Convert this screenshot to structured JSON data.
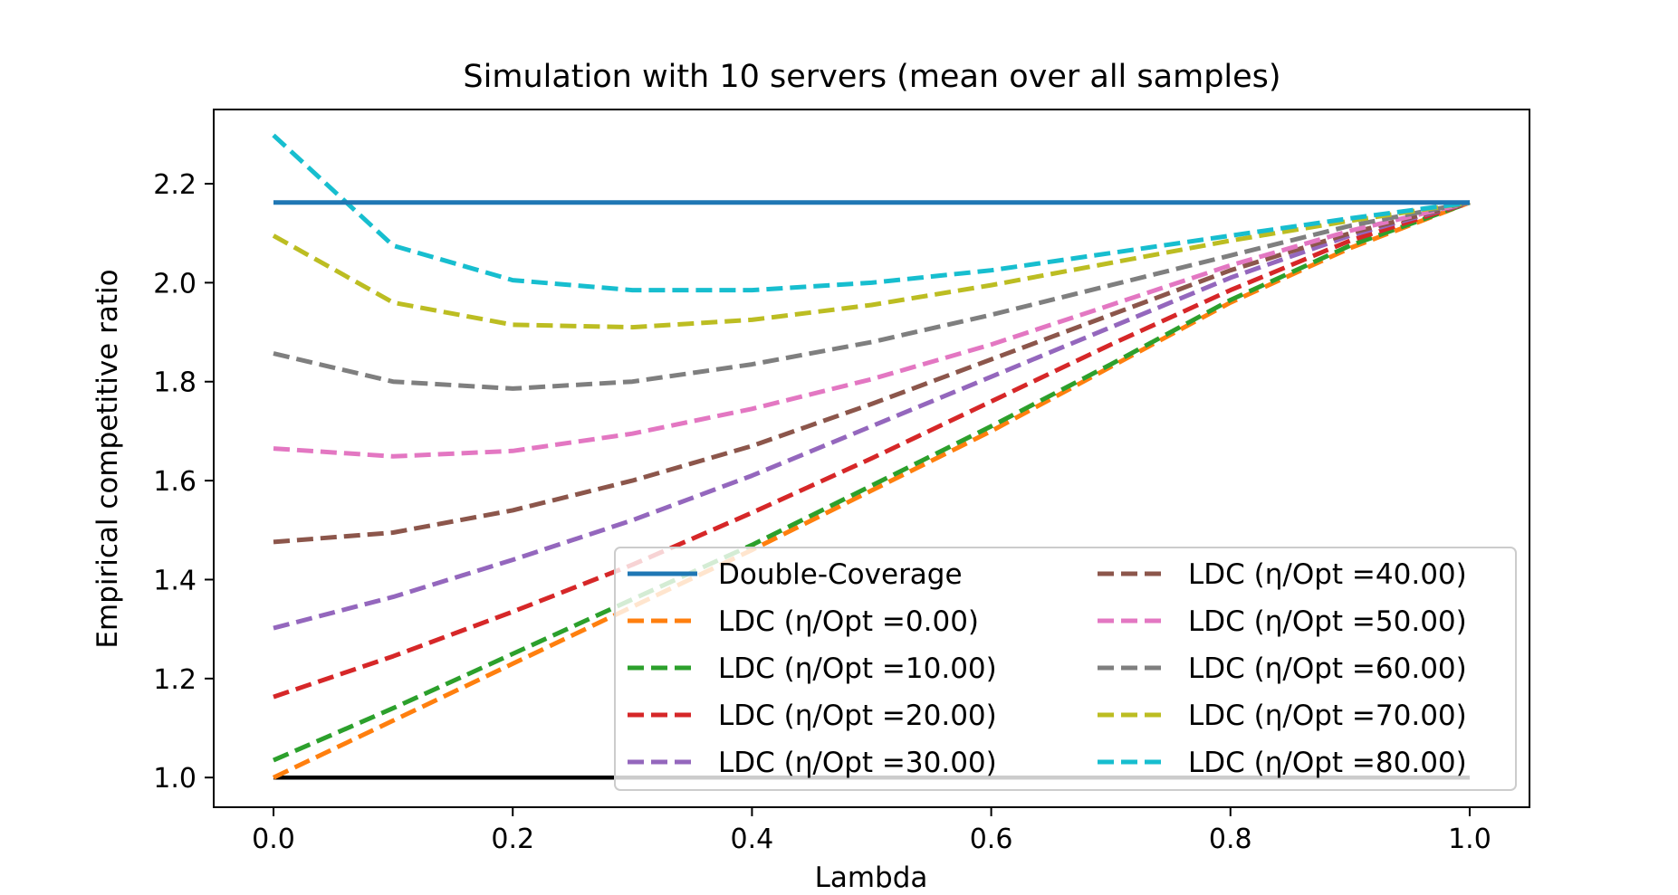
{
  "chart_data": {
    "type": "line",
    "title": "Simulation with 10 servers (mean over all samples)",
    "xlabel": "Lambda",
    "ylabel": "Empirical competitive ratio",
    "xlim": [
      -0.05,
      1.05
    ],
    "ylim": [
      0.94,
      2.35
    ],
    "xticks": [
      0.0,
      0.2,
      0.4,
      0.6,
      0.8,
      1.0
    ],
    "xtick_labels": [
      "0.0",
      "0.2",
      "0.4",
      "0.6",
      "0.8",
      "1.0"
    ],
    "yticks": [
      1.0,
      1.2,
      1.4,
      1.6,
      1.8,
      2.0,
      2.2
    ],
    "ytick_labels": [
      "1.0",
      "1.2",
      "1.4",
      "1.6",
      "1.8",
      "2.0",
      "2.2"
    ],
    "grid": false,
    "legend_placement": "lower-right",
    "legend_columns": 2,
    "x": [
      0.0,
      0.1,
      0.2,
      0.3,
      0.4,
      0.5,
      0.6,
      0.7,
      0.8,
      0.9,
      1.0
    ],
    "series": [
      {
        "name": "Double-Coverage",
        "style": "solid",
        "color": "#1f77b4",
        "values": [
          2.162,
          2.162,
          2.162,
          2.162,
          2.162,
          2.162,
          2.162,
          2.162,
          2.162,
          2.162,
          2.162
        ]
      },
      {
        "name": "LDC (η/Opt =0.00)",
        "style": "dashed",
        "color": "#ff7f0e",
        "values": [
          1.0,
          1.115,
          1.23,
          1.345,
          1.46,
          1.58,
          1.7,
          1.83,
          1.96,
          2.07,
          2.162
        ]
      },
      {
        "name": "LDC (η/Opt =10.00)",
        "style": "dashed",
        "color": "#2ca02c",
        "values": [
          1.035,
          1.14,
          1.25,
          1.36,
          1.47,
          1.59,
          1.71,
          1.835,
          1.965,
          2.075,
          2.162
        ]
      },
      {
        "name": "LDC (η/Opt =20.00)",
        "style": "dashed",
        "color": "#d62728",
        "values": [
          1.163,
          1.245,
          1.335,
          1.43,
          1.535,
          1.645,
          1.76,
          1.875,
          1.985,
          2.085,
          2.162
        ]
      },
      {
        "name": "LDC (η/Opt =30.00)",
        "style": "dashed",
        "color": "#9467bd",
        "values": [
          1.302,
          1.365,
          1.44,
          1.52,
          1.61,
          1.71,
          1.81,
          1.91,
          2.01,
          2.095,
          2.162
        ]
      },
      {
        "name": "LDC (η/Opt =40.00)",
        "style": "dashed",
        "color": "#8c564b",
        "values": [
          1.476,
          1.495,
          1.54,
          1.6,
          1.67,
          1.755,
          1.845,
          1.935,
          2.025,
          2.1,
          2.162
        ]
      },
      {
        "name": "LDC (η/Opt =50.00)",
        "style": "dashed",
        "color": "#e377c2",
        "values": [
          1.665,
          1.649,
          1.66,
          1.695,
          1.745,
          1.805,
          1.875,
          1.955,
          2.035,
          2.105,
          2.162
        ]
      },
      {
        "name": "LDC (η/Opt =60.00)",
        "style": "dashed",
        "color": "#7f7f7f",
        "values": [
          1.857,
          1.8,
          1.786,
          1.8,
          1.835,
          1.88,
          1.935,
          1.995,
          2.055,
          2.115,
          2.162
        ]
      },
      {
        "name": "LDC (η/Opt =70.00)",
        "style": "dashed",
        "color": "#bcbd22",
        "values": [
          2.095,
          1.96,
          1.915,
          1.91,
          1.925,
          1.955,
          1.995,
          2.04,
          2.085,
          2.125,
          2.162
        ]
      },
      {
        "name": "LDC (η/Opt =80.00)",
        "style": "dashed",
        "color": "#17becf",
        "values": [
          2.298,
          2.075,
          2.005,
          1.985,
          1.985,
          2.0,
          2.025,
          2.06,
          2.095,
          2.13,
          2.162
        ]
      }
    ],
    "reference_line": {
      "y": 1.0,
      "x_range": [
        0.0,
        1.0
      ],
      "color": "#000000"
    }
  }
}
